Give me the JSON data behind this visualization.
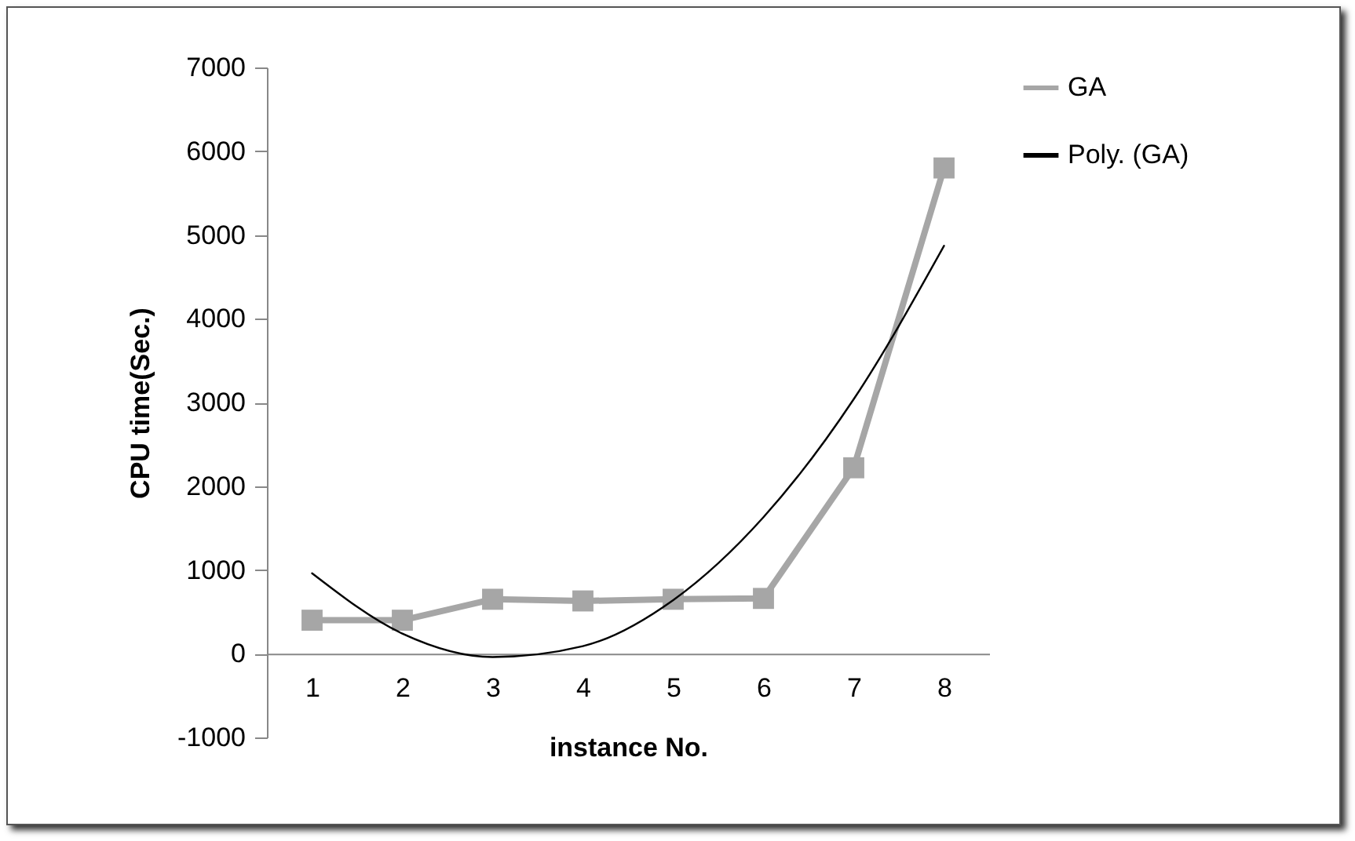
{
  "chart_data": {
    "type": "line",
    "xlabel": "instance No.",
    "ylabel": "CPU time(Sec.)",
    "categories": [
      "1",
      "2",
      "3",
      "4",
      "5",
      "6",
      "7",
      "8"
    ],
    "ylim": [
      -1000,
      7000
    ],
    "yticks": [
      -1000,
      0,
      1000,
      2000,
      3000,
      4000,
      5000,
      6000,
      7000
    ],
    "grid": false,
    "legend": "right",
    "series": [
      {
        "name": "GA",
        "color": "#a6a6a6",
        "marker": "square",
        "values": [
          400,
          400,
          650,
          630,
          650,
          660,
          2220,
          5800
        ]
      },
      {
        "name": "Poly. (GA)",
        "type": "line",
        "color": "#000000",
        "marker": "none",
        "values": [
          960,
          240,
          -40,
          90,
          640,
          1630,
          3040,
          4870
        ]
      }
    ]
  }
}
